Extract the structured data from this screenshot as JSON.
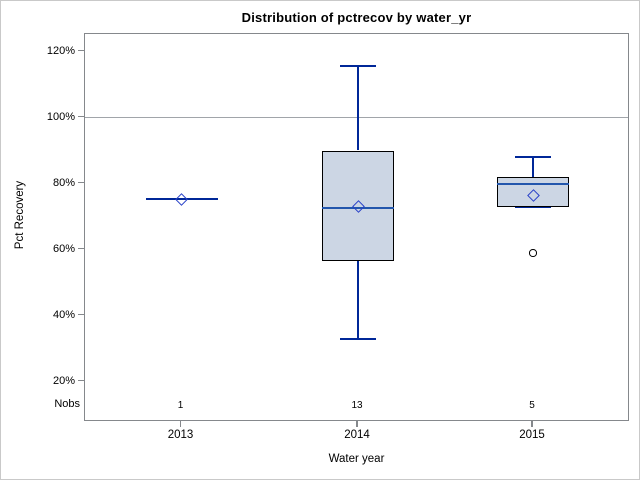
{
  "title": "Distribution of pctrecov by water_yr",
  "colors": {
    "box_fill": "#ccd6e4",
    "box_border": "#000000",
    "median": "#2256ac",
    "whisker": "#002798",
    "mean_marker": "#2841c8",
    "outlier": "#000000",
    "frame": "#85888c",
    "gridline": "#a1a5aa"
  },
  "chart_data": {
    "type": "boxplot",
    "title": "Distribution of pctrecov by water_yr",
    "xlabel": "Water year",
    "ylabel": "Pct Recovery",
    "categories": [
      "2013",
      "2014",
      "2015"
    ],
    "nobs_label": "Nobs",
    "nobs": [
      "1",
      "13",
      "5"
    ],
    "y_ticks": [
      120,
      100,
      80,
      60,
      40,
      20
    ],
    "y_tick_suffix": "%",
    "ylim": [
      8,
      125
    ],
    "reference_line": 100,
    "grid": "reference line at 100% only",
    "legend": "none",
    "series": [
      {
        "category": "2013",
        "n": 1,
        "whisker_low": 75.3,
        "q1": 75.3,
        "median": 75.3,
        "q3": 75.3,
        "whisker_high": 75.3,
        "mean": 75.3,
        "outliers": []
      },
      {
        "category": "2014",
        "n": 13,
        "whisker_low": 33,
        "q1": 56.5,
        "median": 72.5,
        "q3": 90,
        "whisker_high": 115.7,
        "mean": 73,
        "outliers": []
      },
      {
        "category": "2015",
        "n": 5,
        "whisker_low": 73,
        "q1": 73,
        "median": 80,
        "q3": 82,
        "whisker_high": 88,
        "mean": 76.5,
        "outliers": [
          59
        ]
      }
    ]
  }
}
